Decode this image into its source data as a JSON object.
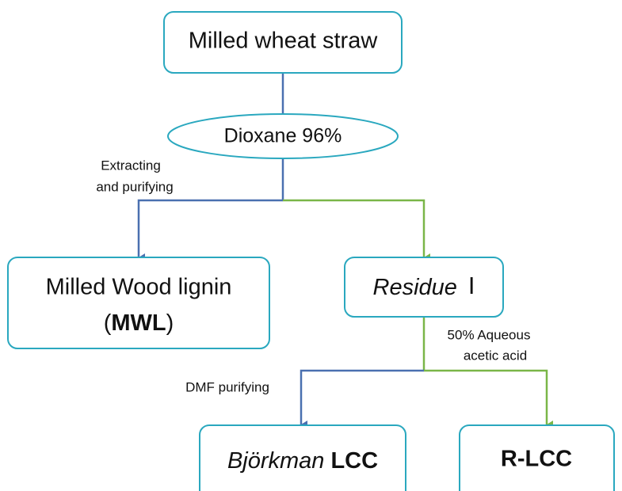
{
  "nodes": [
    {
      "text": "Milled wheat straw"
    },
    {
      "text": "Dioxane 96%"
    },
    {
      "lines": [
        [
          "Milled Wood lignin"
        ],
        [
          "(",
          "MWL",
          ")"
        ]
      ]
    },
    {
      "parts": [
        "Residue",
        "Ⅰ"
      ]
    },
    {
      "parts": [
        "Björkman",
        "LCC"
      ]
    },
    {
      "parts": [
        "R-LCC"
      ]
    }
  ],
  "edge_labels": [
    {
      "lines": [
        "Extracting",
        "and purifying"
      ]
    },
    {
      "lines": [
        "50% Aqueous",
        "acetic acid"
      ]
    },
    {
      "lines": [
        "DMF purifying"
      ]
    }
  ]
}
